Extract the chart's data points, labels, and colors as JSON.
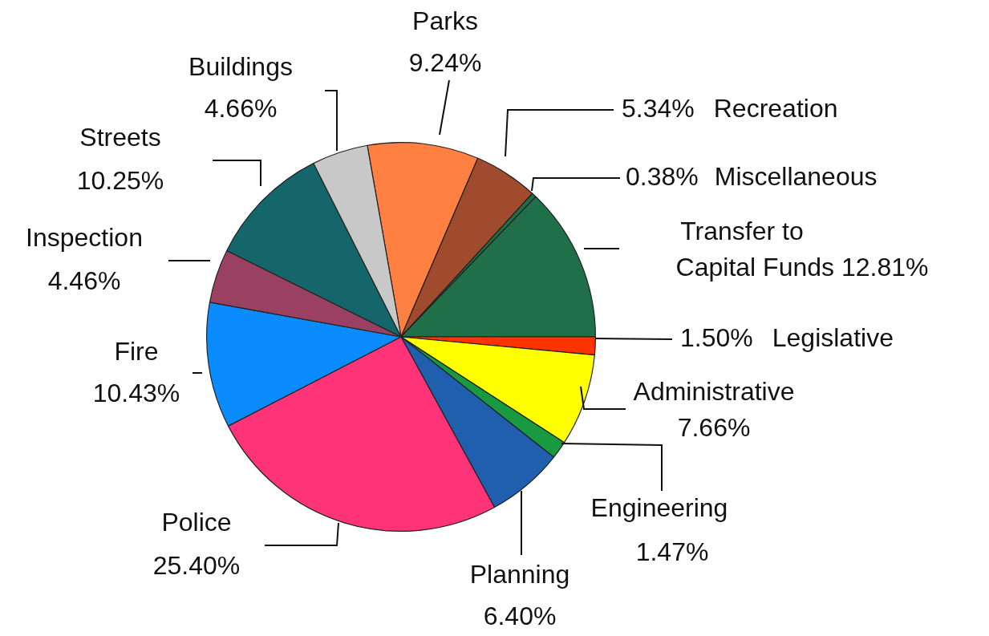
{
  "chart_data": {
    "type": "pie",
    "categories": [
      "Parks",
      "Recreation",
      "Miscellaneous",
      "Transfer to Capital Funds",
      "Legislative",
      "Administrative",
      "Engineering",
      "Planning",
      "Police",
      "Fire",
      "Inspection",
      "Streets",
      "Buildings"
    ],
    "values": [
      9.24,
      5.34,
      0.38,
      12.81,
      1.5,
      7.66,
      1.47,
      6.4,
      25.4,
      10.43,
      4.46,
      10.25,
      4.66
    ],
    "value_labels": [
      "9.24%",
      "5.34%",
      "0.38%",
      "12.81%",
      "1.50%",
      "7.66%",
      "1.47%",
      "6.40%",
      "25.40%",
      "10.43%",
      "4.46%",
      "10.25%",
      "4.66%"
    ],
    "colors": [
      "#ff8040",
      "#a04a2e",
      "#1e6e48",
      "#1f7048",
      "#ff3300",
      "#ffff00",
      "#1a9a40",
      "#1f5fae",
      "#ff3377",
      "#0a8cff",
      "#9a4060",
      "#14666a",
      "#c8c8c8"
    ],
    "legend": false
  }
}
